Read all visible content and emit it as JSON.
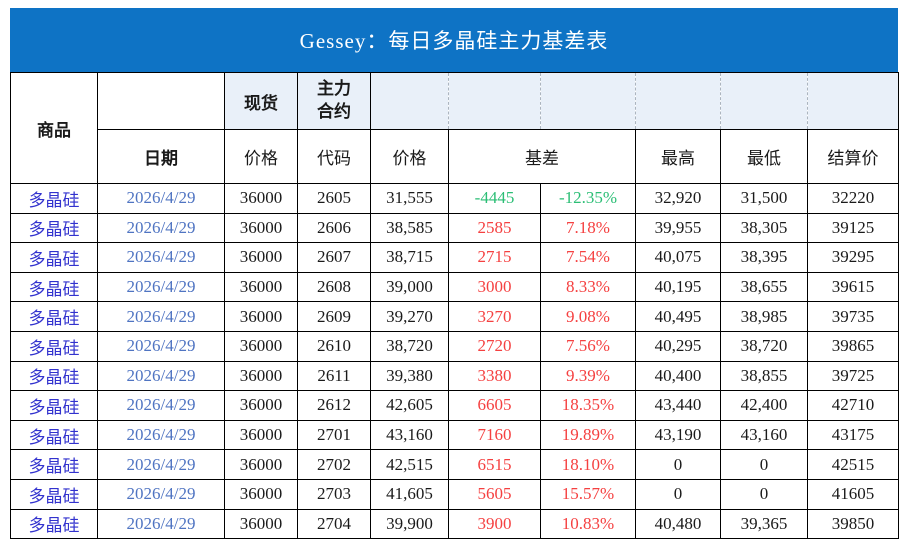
{
  "title": "Gessey：每日多晶硅主力基差表",
  "colors": {
    "page_bg": "#FFFFFF",
    "title_bg": "#0E73C5",
    "title_text": "#FFFFFF",
    "header_cell_bg": "#E9F0F9",
    "dashed_line": "#ABB4BF",
    "grid_line": "#000000",
    "header_text": "#1A1A1A",
    "commodity_text": "#3232CE",
    "date_text": "#4F74C2",
    "number_text": "#1A1A1A",
    "basis_positive_red": "#F54040",
    "basis_negative_green": "#2BBE75"
  },
  "header": {
    "commodity": "商品",
    "date": "日期",
    "spot_group": "现货",
    "main_contract_lines": [
      "主力",
      "合约"
    ],
    "spot_price": "价格",
    "contract_code": "代码",
    "contract_price": "价格",
    "basis": "基差",
    "high": "最高",
    "low": "最低",
    "settlement": "结算价"
  },
  "rows": [
    {
      "trend": "down",
      "cells": [
        "多晶硅",
        "2026/4/29",
        "36000",
        "2605",
        "31,555",
        "-4445",
        "-12.35%",
        "32,920",
        "31,500",
        "32220"
      ]
    },
    {
      "trend": "up",
      "cells": [
        "多晶硅",
        "2026/4/29",
        "36000",
        "2606",
        "38,585",
        "2585",
        "7.18%",
        "39,955",
        "38,305",
        "39125"
      ]
    },
    {
      "trend": "up",
      "cells": [
        "多晶硅",
        "2026/4/29",
        "36000",
        "2607",
        "38,715",
        "2715",
        "7.54%",
        "40,075",
        "38,395",
        "39295"
      ]
    },
    {
      "trend": "up",
      "cells": [
        "多晶硅",
        "2026/4/29",
        "36000",
        "2608",
        "39,000",
        "3000",
        "8.33%",
        "40,195",
        "38,655",
        "39615"
      ]
    },
    {
      "trend": "up",
      "cells": [
        "多晶硅",
        "2026/4/29",
        "36000",
        "2609",
        "39,270",
        "3270",
        "9.08%",
        "40,495",
        "38,985",
        "39735"
      ]
    },
    {
      "trend": "up",
      "cells": [
        "多晶硅",
        "2026/4/29",
        "36000",
        "2610",
        "38,720",
        "2720",
        "7.56%",
        "40,295",
        "38,720",
        "39865"
      ]
    },
    {
      "trend": "up",
      "cells": [
        "多晶硅",
        "2026/4/29",
        "36000",
        "2611",
        "39,380",
        "3380",
        "9.39%",
        "40,400",
        "38,855",
        "39725"
      ]
    },
    {
      "trend": "up",
      "cells": [
        "多晶硅",
        "2026/4/29",
        "36000",
        "2612",
        "42,605",
        "6605",
        "18.35%",
        "43,440",
        "42,400",
        "42710"
      ]
    },
    {
      "trend": "up",
      "cells": [
        "多晶硅",
        "2026/4/29",
        "36000",
        "2701",
        "43,160",
        "7160",
        "19.89%",
        "43,190",
        "43,160",
        "43175"
      ]
    },
    {
      "trend": "up",
      "cells": [
        "多晶硅",
        "2026/4/29",
        "36000",
        "2702",
        "42,515",
        "6515",
        "18.10%",
        "0",
        "0",
        "42515"
      ]
    },
    {
      "trend": "up",
      "cells": [
        "多晶硅",
        "2026/4/29",
        "36000",
        "2703",
        "41,605",
        "5605",
        "15.57%",
        "0",
        "0",
        "41605"
      ]
    },
    {
      "trend": "up",
      "cells": [
        "多晶硅",
        "2026/4/29",
        "36000",
        "2704",
        "39,900",
        "3900",
        "10.83%",
        "40,480",
        "39,365",
        "39850"
      ]
    }
  ]
}
